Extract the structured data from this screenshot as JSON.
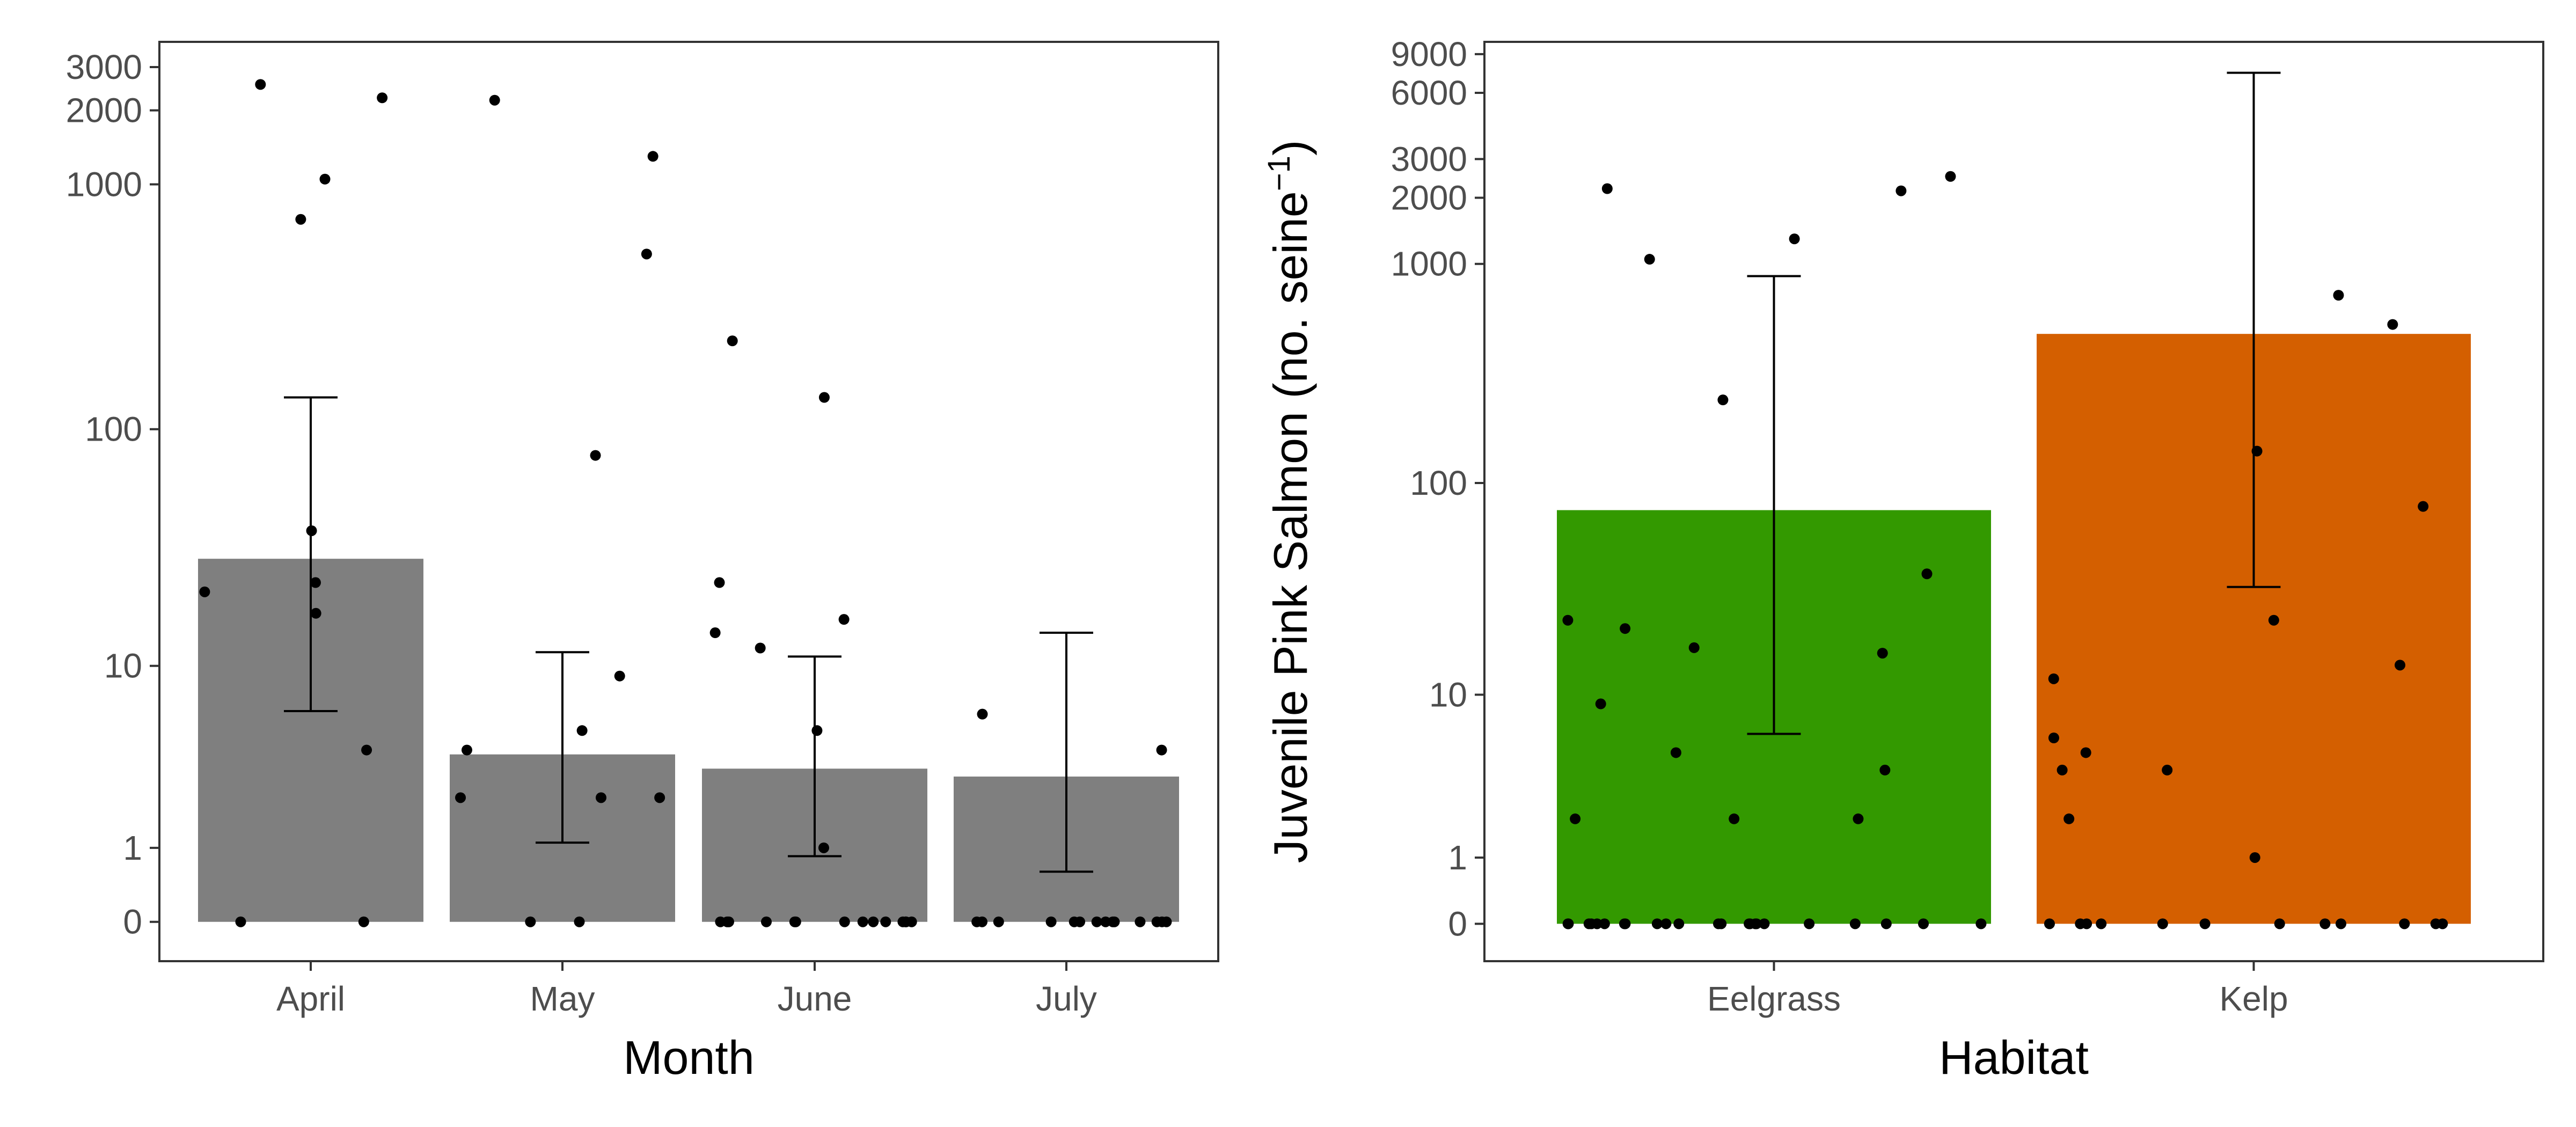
{
  "chart_data": [
    {
      "type": "bar",
      "xlabel": "Month",
      "ylabel": "",
      "yscale": "pseudo-log",
      "ylim": [
        0,
        3500
      ],
      "yticks": [
        0,
        1,
        10,
        100,
        1000,
        2000,
        3000
      ],
      "grid": false,
      "legend": "none",
      "bar_color": "#7f7f7f",
      "categories": [
        "April",
        "May",
        "June",
        "July"
      ],
      "values": [
        29,
        3.8,
        3.2,
        2.9
      ],
      "error_bars": [
        [
          6.2,
          135
        ],
        [
          1.1,
          11.5
        ],
        [
          0.85,
          11
        ],
        [
          0.6,
          14
        ]
      ],
      "points": [
        [
          0,
          0,
          1050,
          720,
          2550,
          2250,
          4,
          38,
          17,
          23,
          21
        ],
        [
          5,
          2.2,
          0,
          520,
          2200,
          1300,
          78,
          9,
          4,
          2.2,
          2.2,
          0
        ],
        [
          16,
          5,
          0,
          0,
          0,
          0,
          0,
          0,
          0,
          0,
          230,
          23,
          14,
          12,
          1,
          135,
          0,
          0,
          0,
          0,
          0,
          0
        ],
        [
          0,
          0,
          0,
          0,
          0,
          0,
          0,
          0,
          0,
          4,
          0,
          0,
          0,
          6,
          0,
          0
        ]
      ]
    },
    {
      "type": "bar",
      "xlabel": "Habitat",
      "ylabel": "Juvenile Pink Salmon (no. seine",
      "ylabel_sup": "−1",
      "ylabel_close": ")",
      "yscale": "pseudo-log",
      "ylim": [
        0,
        11000
      ],
      "yticks": [
        0,
        1,
        10,
        100,
        1000,
        2000,
        3000,
        6000,
        9000
      ],
      "grid": false,
      "legend": "none",
      "categories": [
        "Eelgrass",
        "Kelp"
      ],
      "values": [
        75,
        480
      ],
      "colors": [
        "#339900",
        "#d45f00"
      ],
      "error_bars": [
        [
          6.3,
          880
        ],
        [
          33,
          7400
        ]
      ],
      "points": [
        [
          5,
          0,
          0,
          0,
          2150,
          2,
          17,
          0,
          0,
          0,
          0,
          1050,
          1300,
          0,
          0,
          2,
          0,
          16,
          0,
          0,
          9,
          0,
          0,
          0,
          0,
          4,
          2,
          0,
          0,
          0,
          0,
          23,
          21,
          240,
          38,
          0,
          0,
          2200,
          2500,
          0
        ],
        [
          78,
          5,
          0,
          4,
          4,
          720,
          530,
          12,
          23,
          14,
          0,
          0,
          0,
          140,
          0,
          0,
          1,
          0,
          0,
          6,
          0,
          0,
          2,
          0,
          0
        ]
      ]
    }
  ]
}
